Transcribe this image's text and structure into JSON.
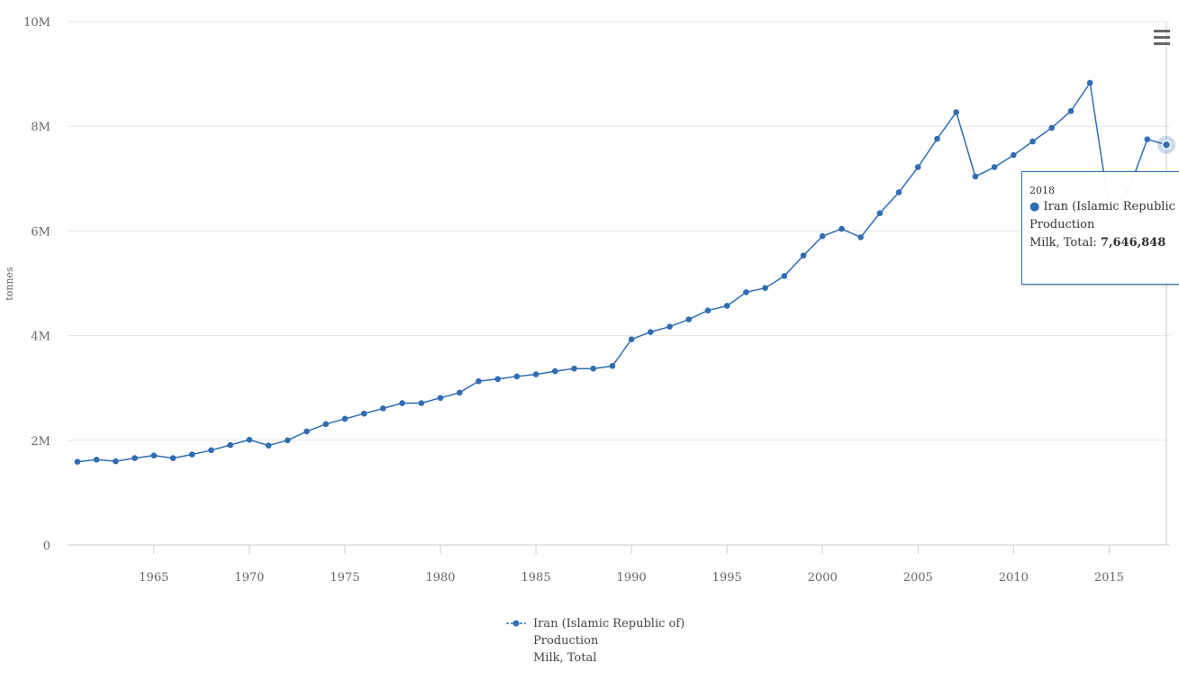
{
  "chart_data": {
    "type": "line",
    "ylabel": "tonnes",
    "ylim": [
      0,
      10000000
    ],
    "y_ticks": [
      "0",
      "2M",
      "4M",
      "6M",
      "8M",
      "10M"
    ],
    "y_tick_values": [
      0,
      2000000,
      4000000,
      6000000,
      8000000,
      10000000
    ],
    "xlim": [
      1961,
      2018
    ],
    "x_ticks": [
      "1965",
      "1970",
      "1975",
      "1980",
      "1985",
      "1990",
      "1995",
      "2000",
      "2005",
      "2010",
      "2015"
    ],
    "grid": "horizontal",
    "legend_position": "bottom",
    "series": [
      {
        "name": "Iran (Islamic Republic of)",
        "legend_lines": [
          "Iran (Islamic Republic of)",
          "Production",
          "Milk, Total"
        ],
        "color": "#2f6db3",
        "x": [
          1961,
          1962,
          1963,
          1964,
          1965,
          1966,
          1967,
          1968,
          1969,
          1970,
          1971,
          1972,
          1973,
          1974,
          1975,
          1976,
          1977,
          1978,
          1979,
          1980,
          1981,
          1982,
          1983,
          1984,
          1985,
          1986,
          1987,
          1988,
          1989,
          1990,
          1991,
          1992,
          1993,
          1994,
          1995,
          1996,
          1997,
          1998,
          1999,
          2000,
          2001,
          2002,
          2003,
          2004,
          2005,
          2006,
          2007,
          2008,
          2009,
          2010,
          2011,
          2012,
          2013,
          2014,
          2015,
          2016,
          2017,
          2018
        ],
        "values": [
          1590000,
          1630000,
          1600000,
          1660000,
          1710000,
          1660000,
          1730000,
          1810000,
          1910000,
          2010000,
          1900000,
          2000000,
          2170000,
          2310000,
          2410000,
          2510000,
          2610000,
          2710000,
          2710000,
          2810000,
          2910000,
          3130000,
          3170000,
          3220000,
          3260000,
          3320000,
          3370000,
          3370000,
          3420000,
          3930000,
          4070000,
          4170000,
          4310000,
          4480000,
          4570000,
          4830000,
          4910000,
          5140000,
          5530000,
          5900000,
          6040000,
          5880000,
          6340000,
          6740000,
          7220000,
          7760000,
          8270000,
          7040000,
          7220000,
          7450000,
          7710000,
          7970000,
          8290000,
          8830000,
          6440000,
          6760000,
          7750000,
          7646848
        ]
      }
    ]
  },
  "tooltip": {
    "date": "2018",
    "series_name": "Iran (Islamic Republic of)",
    "line2": "Production",
    "label": "Milk, Total: ",
    "value": "7,646,848"
  },
  "icons": {
    "menu": "hamburger-menu-icon",
    "legend": "line-marker-icon"
  }
}
